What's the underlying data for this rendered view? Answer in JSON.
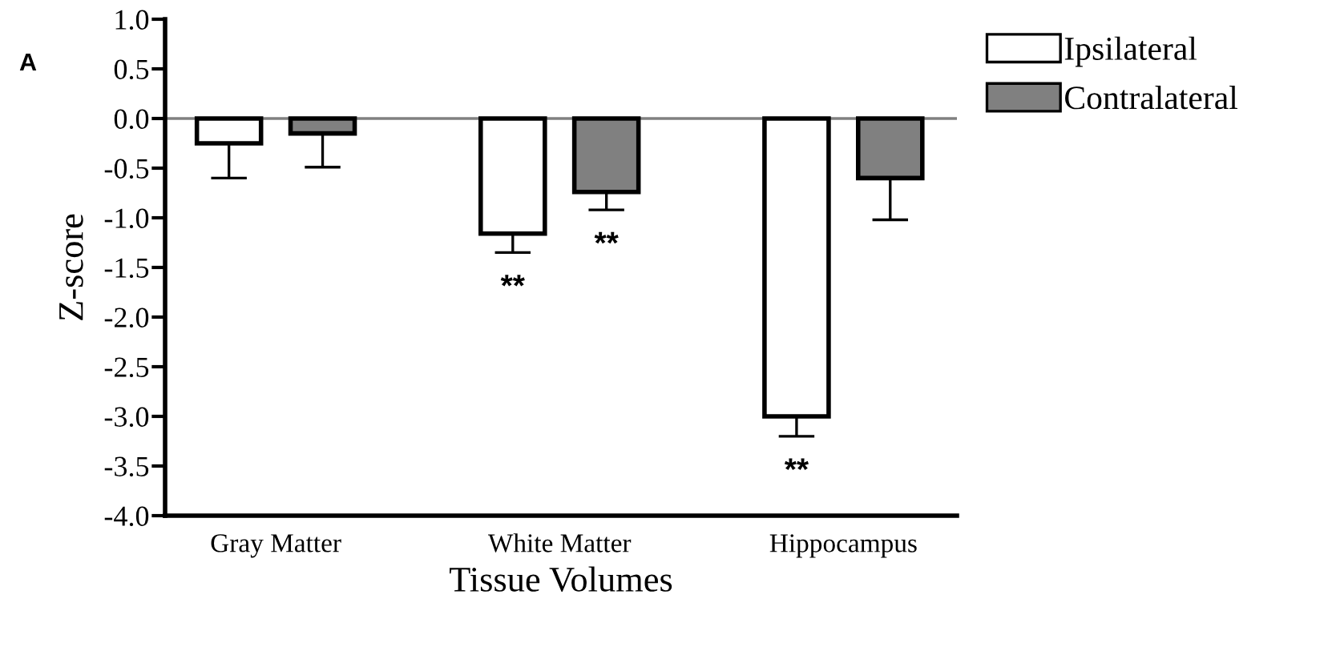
{
  "chart_data": {
    "type": "bar",
    "xlabel": "Tissue Volumes",
    "ylabel": "Z-score",
    "categories": [
      "Gray Matter",
      "White Matter",
      "Hippocampus"
    ],
    "series": [
      {
        "name": "Ipsilateral",
        "color": "#ffffff",
        "values": [
          -0.25,
          -1.16,
          -3.0
        ],
        "errors": [
          [
            -0.6,
            -0.25
          ],
          [
            -1.35,
            -1.16
          ],
          [
            -3.2,
            -3.0
          ]
        ],
        "value_labels": [
          null,
          "**",
          "**"
        ]
      },
      {
        "name": "Contralateral",
        "color": "#808080",
        "values": [
          -0.15,
          -0.74,
          -0.6
        ],
        "errors": [
          [
            -0.49,
            -0.15
          ],
          [
            -0.92,
            -0.74
          ],
          [
            -1.02,
            -0.6
          ]
        ],
        "value_labels": [
          null,
          "**",
          null
        ]
      }
    ],
    "ylim": [
      -4.0,
      1.0
    ],
    "yticks": [
      {
        "value": -4.0,
        "label": "-4.0"
      },
      {
        "value": -3.5,
        "label": "-3.5"
      },
      {
        "value": -3.0,
        "label": "-3.0"
      },
      {
        "value": -2.5,
        "label": "-2.5"
      },
      {
        "value": -2.0,
        "label": "-2.0"
      },
      {
        "value": -1.5,
        "label": "-1.5"
      },
      {
        "value": -1.0,
        "label": "-1.0"
      },
      {
        "value": -0.5,
        "label": "-0.5"
      },
      {
        "value": 0.0,
        "label": "0.0"
      },
      {
        "value": 0.5,
        "label": "0.5"
      },
      {
        "value": 1.0,
        "label": "1.0"
      }
    ],
    "ref_lines": [
      {
        "axis": "y",
        "value": 0,
        "color": "#808080"
      }
    ],
    "annotations": [
      "A"
    ],
    "grid": false,
    "legend": "top right"
  }
}
